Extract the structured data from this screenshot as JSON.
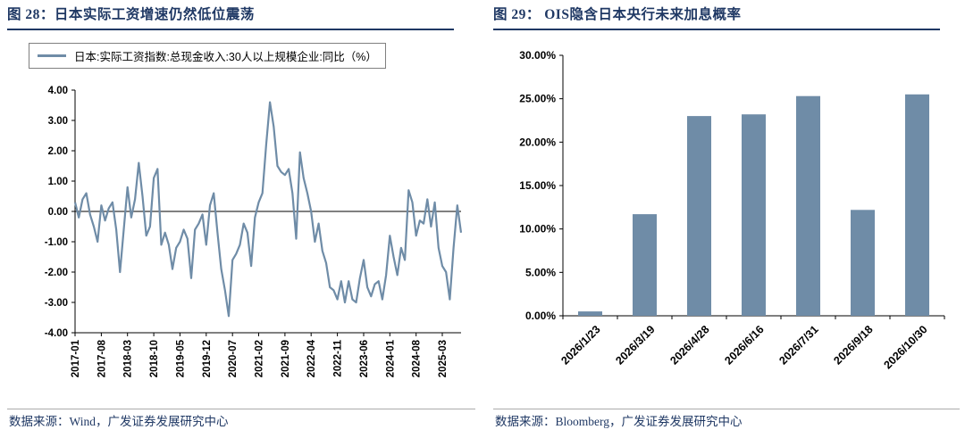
{
  "colors": {
    "title_navy": "#1f3864",
    "series_blue": "#6f8ca7",
    "axis_black": "#000000",
    "divider_gray": "#ababab"
  },
  "left_panel": {
    "title": "图 28：日本实际工资增速仍然低位震荡",
    "legend": "日本:实际工资指数:总现金收入:30人以上规模企业:同比（%）",
    "source": "数据来源：Wind，广发证券发展研究中心"
  },
  "right_panel": {
    "title": "图 29： OIS隐含日本央行未来加息概率",
    "source": "数据来源：Bloomberg，广发证券发展研究中心"
  },
  "chart_data": [
    {
      "type": "line",
      "title": "日本实际工资增速仍然低位震荡",
      "series_name": "日本:实际工资指数:总现金收入:30人以上规模企业:同比（%）",
      "x_start": "2017-01",
      "x_end": "2025-08",
      "frequency": "monthly",
      "x_tick_labels": [
        "2017-01",
        "2017-08",
        "2018-03",
        "2018-10",
        "2019-05",
        "2019-12",
        "2020-07",
        "2021-02",
        "2021-09",
        "2022-04",
        "2022-11",
        "2023-06",
        "2024-01",
        "2024-08",
        "2025-03"
      ],
      "x_tick_every": 7,
      "values": [
        0.3,
        -0.2,
        0.4,
        0.6,
        -0.1,
        -0.5,
        -1.0,
        0.2,
        -0.3,
        0.1,
        0.3,
        -0.6,
        -2.0,
        -0.6,
        0.8,
        -0.2,
        0.4,
        1.6,
        0.5,
        -0.8,
        -0.5,
        1.1,
        1.4,
        -1.1,
        -0.7,
        -1.1,
        -1.9,
        -1.2,
        -1.0,
        -0.6,
        -0.9,
        -2.2,
        -0.6,
        -0.4,
        -0.1,
        -1.1,
        0.2,
        0.6,
        -0.7,
        -1.9,
        -2.6,
        -3.45,
        -1.6,
        -1.4,
        -1.1,
        -0.4,
        -0.7,
        -1.8,
        -0.2,
        0.3,
        0.6,
        2.2,
        3.6,
        2.8,
        1.5,
        1.3,
        1.2,
        1.4,
        0.6,
        -0.9,
        1.95,
        1.1,
        0.6,
        0.0,
        -1.0,
        -0.4,
        -1.3,
        -1.7,
        -2.5,
        -2.6,
        -2.9,
        -2.3,
        -3.0,
        -2.3,
        -2.9,
        -3.0,
        -2.2,
        -1.6,
        -2.5,
        -2.8,
        -2.4,
        -2.3,
        -2.9,
        -2.1,
        -0.8,
        -1.5,
        -2.1,
        -1.2,
        -1.6,
        0.7,
        0.3,
        -0.8,
        -0.3,
        -0.4,
        0.4,
        -0.5,
        0.3,
        -1.2,
        -1.8,
        -2.0,
        -2.9,
        -1.2,
        0.2,
        -0.7
      ],
      "ylim": [
        -4,
        4
      ],
      "ytick_step": 1,
      "y_label_format": "0.00",
      "grid": false,
      "legend_position": "top"
    },
    {
      "type": "bar",
      "title": "OIS隐含日本央行未来加息概率",
      "categories": [
        "2026/1/23",
        "2026/3/19",
        "2026/4/28",
        "2026/6/16",
        "2026/7/31",
        "2026/9/18",
        "2026/10/30"
      ],
      "values": [
        0.5,
        11.7,
        23.0,
        23.2,
        25.3,
        12.2,
        25.5
      ],
      "unit": "%",
      "ylim": [
        0,
        30
      ],
      "ytick_step": 5,
      "y_label_format": "0.00%",
      "grid": false
    }
  ]
}
